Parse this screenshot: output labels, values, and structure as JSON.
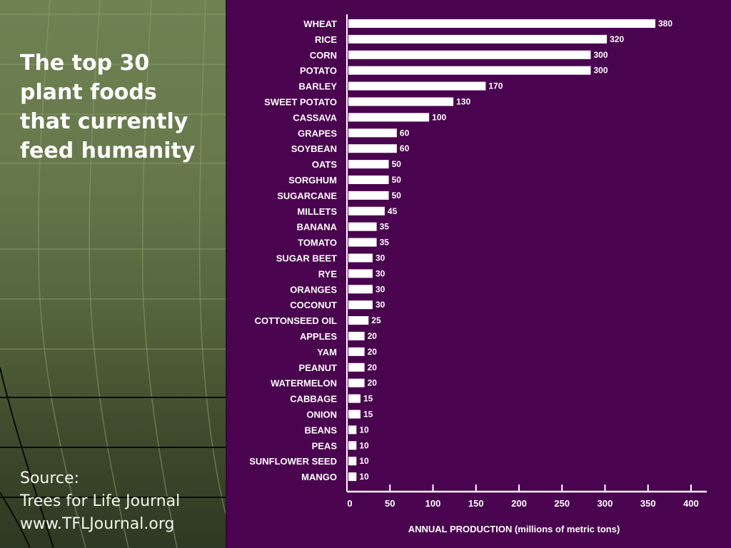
{
  "slide": {
    "title": "The top 30 plant foods that currently feed humanity",
    "title_lines": [
      "The top 30",
      "plant foods",
      "that currently",
      "feed humanity"
    ],
    "source_lines": [
      "Source:",
      "Trees for Life Journal",
      "www.TFLJournal.org"
    ],
    "colors": {
      "panel_green": "#67794c",
      "chart_background": "#4a044f",
      "bar_fill": "#ffffff",
      "text": "#ffffff"
    }
  },
  "chart_data": {
    "type": "bar",
    "orientation": "horizontal",
    "title": "The top 30 plant foods that currently feed humanity",
    "xlabel": "ANNUAL PRODUCTION (millions of metric tons)",
    "ylabel": "",
    "xlim": [
      0,
      400
    ],
    "x_ticks": [
      0,
      50,
      100,
      150,
      200,
      250,
      300,
      350,
      400
    ],
    "x_tick_labels": [
      "0",
      "50",
      "100",
      "150",
      "200",
      "250",
      "300",
      "350",
      "400"
    ],
    "grid": false,
    "legend": "none",
    "categories": [
      "WHEAT",
      "RICE",
      "CORN",
      "POTATO",
      "BARLEY",
      "SWEET POTATO",
      "CASSAVA",
      "GRAPES",
      "SOYBEAN",
      "OATS",
      "SORGHUM",
      "SUGARCANE",
      "MILLETS",
      "BANANA",
      "TOMATO",
      "SUGAR BEET",
      "RYE",
      "ORANGES",
      "COCONUT",
      "COTTONSEED OIL",
      "APPLES",
      "YAM",
      "PEANUT",
      "WATERMELON",
      "CABBAGE",
      "ONION",
      "BEANS",
      "PEAS",
      "SUNFLOWER SEED",
      "MANGO"
    ],
    "values": [
      380,
      320,
      300,
      300,
      170,
      130,
      100,
      60,
      60,
      50,
      50,
      50,
      45,
      35,
      35,
      30,
      30,
      30,
      30,
      25,
      20,
      20,
      20,
      20,
      15,
      15,
      10,
      10,
      10,
      10
    ],
    "value_labels": [
      "380",
      "320",
      "300",
      "300",
      "170",
      "130",
      "100",
      "60",
      "60",
      "50",
      "50",
      "50",
      "45",
      "35",
      "35",
      "30",
      "30",
      "30",
      "30",
      "25",
      "20",
      "20",
      "20",
      "20",
      "15",
      "15",
      "10",
      "10",
      "10",
      "10"
    ]
  }
}
